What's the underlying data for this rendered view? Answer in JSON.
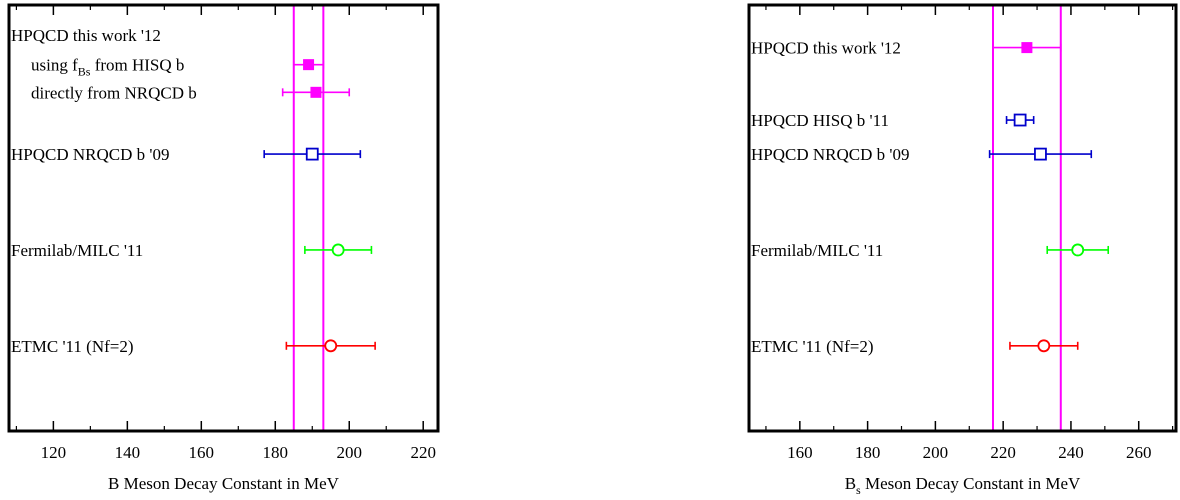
{
  "chart_data": [
    {
      "type": "scatter",
      "subtype": "forest-plot",
      "xlabel": "B Meson Decay Constant in MeV",
      "xlabel_sub": "",
      "xlabel_rest": "",
      "xlim": [
        108,
        224
      ],
      "xticks": [
        120,
        140,
        160,
        180,
        200,
        220
      ],
      "band": [
        185,
        193
      ],
      "band_color": "#ff00ff",
      "grid": false,
      "labels": [
        {
          "text": "HPQCD this work '12",
          "y": 9.3
        },
        {
          "text": "using f",
          "sub": "Bs",
          "rest": " from HISQ b",
          "y": 8.6,
          "indent": true
        },
        {
          "text": "directly from NRQCD b",
          "y": 7.95,
          "indent": true
        }
      ],
      "points": [
        {
          "name": "HPQCD this work '12 using f_Bs from HISQ b",
          "label": "",
          "x": 189,
          "xerr_low": 185,
          "xerr_high": 193,
          "y": 8.6,
          "marker": "filled-square",
          "color": "#ff00ff"
        },
        {
          "name": "HPQCD this work '12 directly from NRQCD b",
          "label": "",
          "x": 191,
          "xerr_low": 182,
          "xerr_high": 200,
          "y": 7.95,
          "marker": "filled-square",
          "color": "#ff00ff"
        },
        {
          "name": "HPQCD NRQCD b '09",
          "label": "HPQCD NRQCD b '09",
          "x": 190,
          "xerr_low": 177,
          "xerr_high": 203,
          "y": 6.5,
          "marker": "open-square",
          "color": "#0000cc"
        },
        {
          "name": "Fermilab/MILC '11",
          "label": "Fermilab/MILC '11",
          "x": 197,
          "xerr_low": 188,
          "xerr_high": 206,
          "y": 4.25,
          "marker": "open-circle",
          "color": "#00ff00"
        },
        {
          "name": "ETMC '11 (Nf=2)",
          "label": "ETMC '11 (Nf=2)",
          "x": 195,
          "xerr_low": 183,
          "xerr_high": 207,
          "y": 2.0,
          "marker": "open-circle",
          "color": "#ff0000"
        }
      ]
    },
    {
      "type": "scatter",
      "subtype": "forest-plot",
      "xlabel": "",
      "xlabel_main": "B",
      "xlabel_sub": "s",
      "xlabel_rest": " Meson Decay Constant in MeV",
      "xlim": [
        145,
        271
      ],
      "xticks": [
        160,
        180,
        200,
        220,
        240,
        260
      ],
      "band": [
        217,
        237
      ],
      "band_color": "#ff00ff",
      "grid": false,
      "labels": [],
      "points": [
        {
          "name": "HPQCD this work '12",
          "label": "HPQCD this work '12",
          "x": 227,
          "xerr_low": 217,
          "xerr_high": 237,
          "y": 9.0,
          "marker": "filled-square",
          "color": "#ff00ff"
        },
        {
          "name": "HPQCD HISQ b '11",
          "label": "HPQCD HISQ b '11",
          "x": 225,
          "xerr_low": 221,
          "xerr_high": 229,
          "y": 7.3,
          "marker": "open-square",
          "color": "#0000cc"
        },
        {
          "name": "HPQCD NRQCD b '09",
          "label": "HPQCD NRQCD b '09",
          "x": 231,
          "xerr_low": 216,
          "xerr_high": 246,
          "y": 6.5,
          "marker": "open-square",
          "color": "#0000cc"
        },
        {
          "name": "Fermilab/MILC '11",
          "label": "Fermilab/MILC '11",
          "x": 242,
          "xerr_low": 233,
          "xerr_high": 251,
          "y": 4.25,
          "marker": "open-circle",
          "color": "#00ff00"
        },
        {
          "name": "ETMC '11 (Nf=2)",
          "label": "ETMC '11 (Nf=2)",
          "x": 232,
          "xerr_low": 222,
          "xerr_high": 242,
          "y": 2.0,
          "marker": "open-circle",
          "color": "#ff0000"
        }
      ]
    }
  ]
}
